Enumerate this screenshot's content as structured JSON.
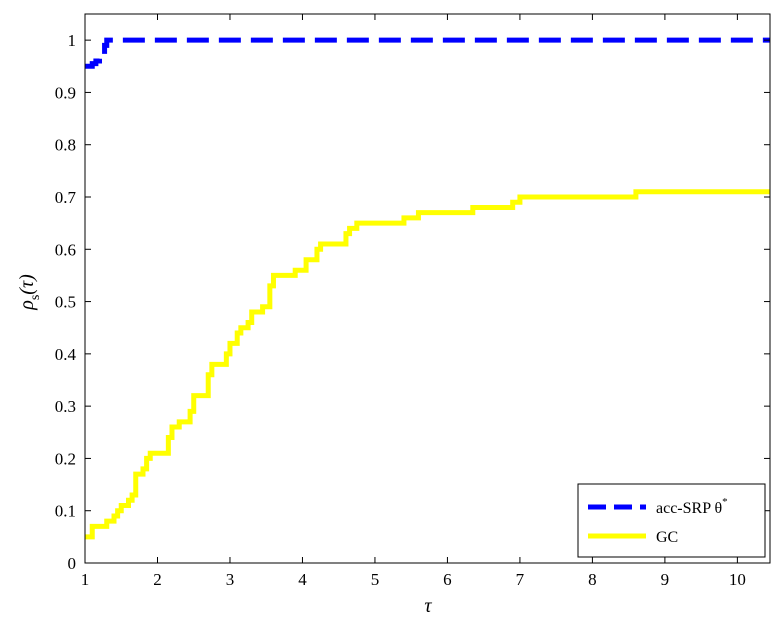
{
  "chart_data": {
    "type": "line",
    "title": "",
    "xlabel": "τ",
    "ylabel": "ρ",
    "ylabel_subscript": "s",
    "ylabel_suffix": "(τ)",
    "xlim": [
      1,
      10.45
    ],
    "ylim": [
      0,
      1.05
    ],
    "xticks": [
      1,
      2,
      3,
      4,
      5,
      6,
      7,
      8,
      9,
      10
    ],
    "yticks": [
      0,
      0.1,
      0.2,
      0.3,
      0.4,
      0.5,
      0.6,
      0.7,
      0.8,
      0.9,
      1
    ],
    "ytick_labels": [
      "0",
      "0.1",
      "0.2",
      "0.3",
      "0.4",
      "0.5",
      "0.6",
      "0.7",
      "0.8",
      "0.9",
      "1"
    ],
    "grid": false,
    "legend_position": "bottom-right",
    "series": [
      {
        "name": "acc-SRP θ*",
        "legend_label": "acc-SRP θ",
        "legend_superscript": "*",
        "color": "#0000ff",
        "style": "dashed",
        "x": [
          1.0,
          1.1,
          1.1,
          1.15,
          1.15,
          1.2,
          1.2,
          1.27,
          1.27,
          1.3,
          1.3,
          10.45
        ],
        "y": [
          0.95,
          0.95,
          0.955,
          0.955,
          0.96,
          0.96,
          0.97,
          0.97,
          0.99,
          0.99,
          1.0,
          1.0
        ]
      },
      {
        "name": "GC",
        "legend_label": "GC",
        "color": "#ffff00",
        "style": "solid",
        "x": [
          1.0,
          1.1,
          1.15,
          1.3,
          1.4,
          1.45,
          1.5,
          1.55,
          1.6,
          1.65,
          1.7,
          1.75,
          1.8,
          1.85,
          1.9,
          1.95,
          2.0,
          2.15,
          2.2,
          2.25,
          2.3,
          2.35,
          2.45,
          2.5,
          2.65,
          2.7,
          2.75,
          2.8,
          2.95,
          3.0,
          3.05,
          3.1,
          3.15,
          3.25,
          3.3,
          3.35,
          3.45,
          3.55,
          3.6,
          3.85,
          3.9,
          4.05,
          4.2,
          4.25,
          4.35,
          4.6,
          4.65,
          4.75,
          4.85,
          5.4,
          5.5,
          5.6,
          6.35,
          6.9,
          7.0,
          8.6,
          10.45
        ],
        "y": [
          0.05,
          0.07,
          0.07,
          0.08,
          0.09,
          0.1,
          0.11,
          0.11,
          0.12,
          0.13,
          0.17,
          0.17,
          0.18,
          0.2,
          0.21,
          0.21,
          0.21,
          0.24,
          0.26,
          0.26,
          0.27,
          0.27,
          0.29,
          0.32,
          0.32,
          0.36,
          0.38,
          0.38,
          0.4,
          0.42,
          0.42,
          0.44,
          0.45,
          0.46,
          0.48,
          0.48,
          0.49,
          0.53,
          0.55,
          0.55,
          0.56,
          0.58,
          0.6,
          0.61,
          0.61,
          0.63,
          0.64,
          0.65,
          0.65,
          0.66,
          0.66,
          0.67,
          0.68,
          0.69,
          0.7,
          0.71,
          0.71
        ]
      }
    ]
  }
}
